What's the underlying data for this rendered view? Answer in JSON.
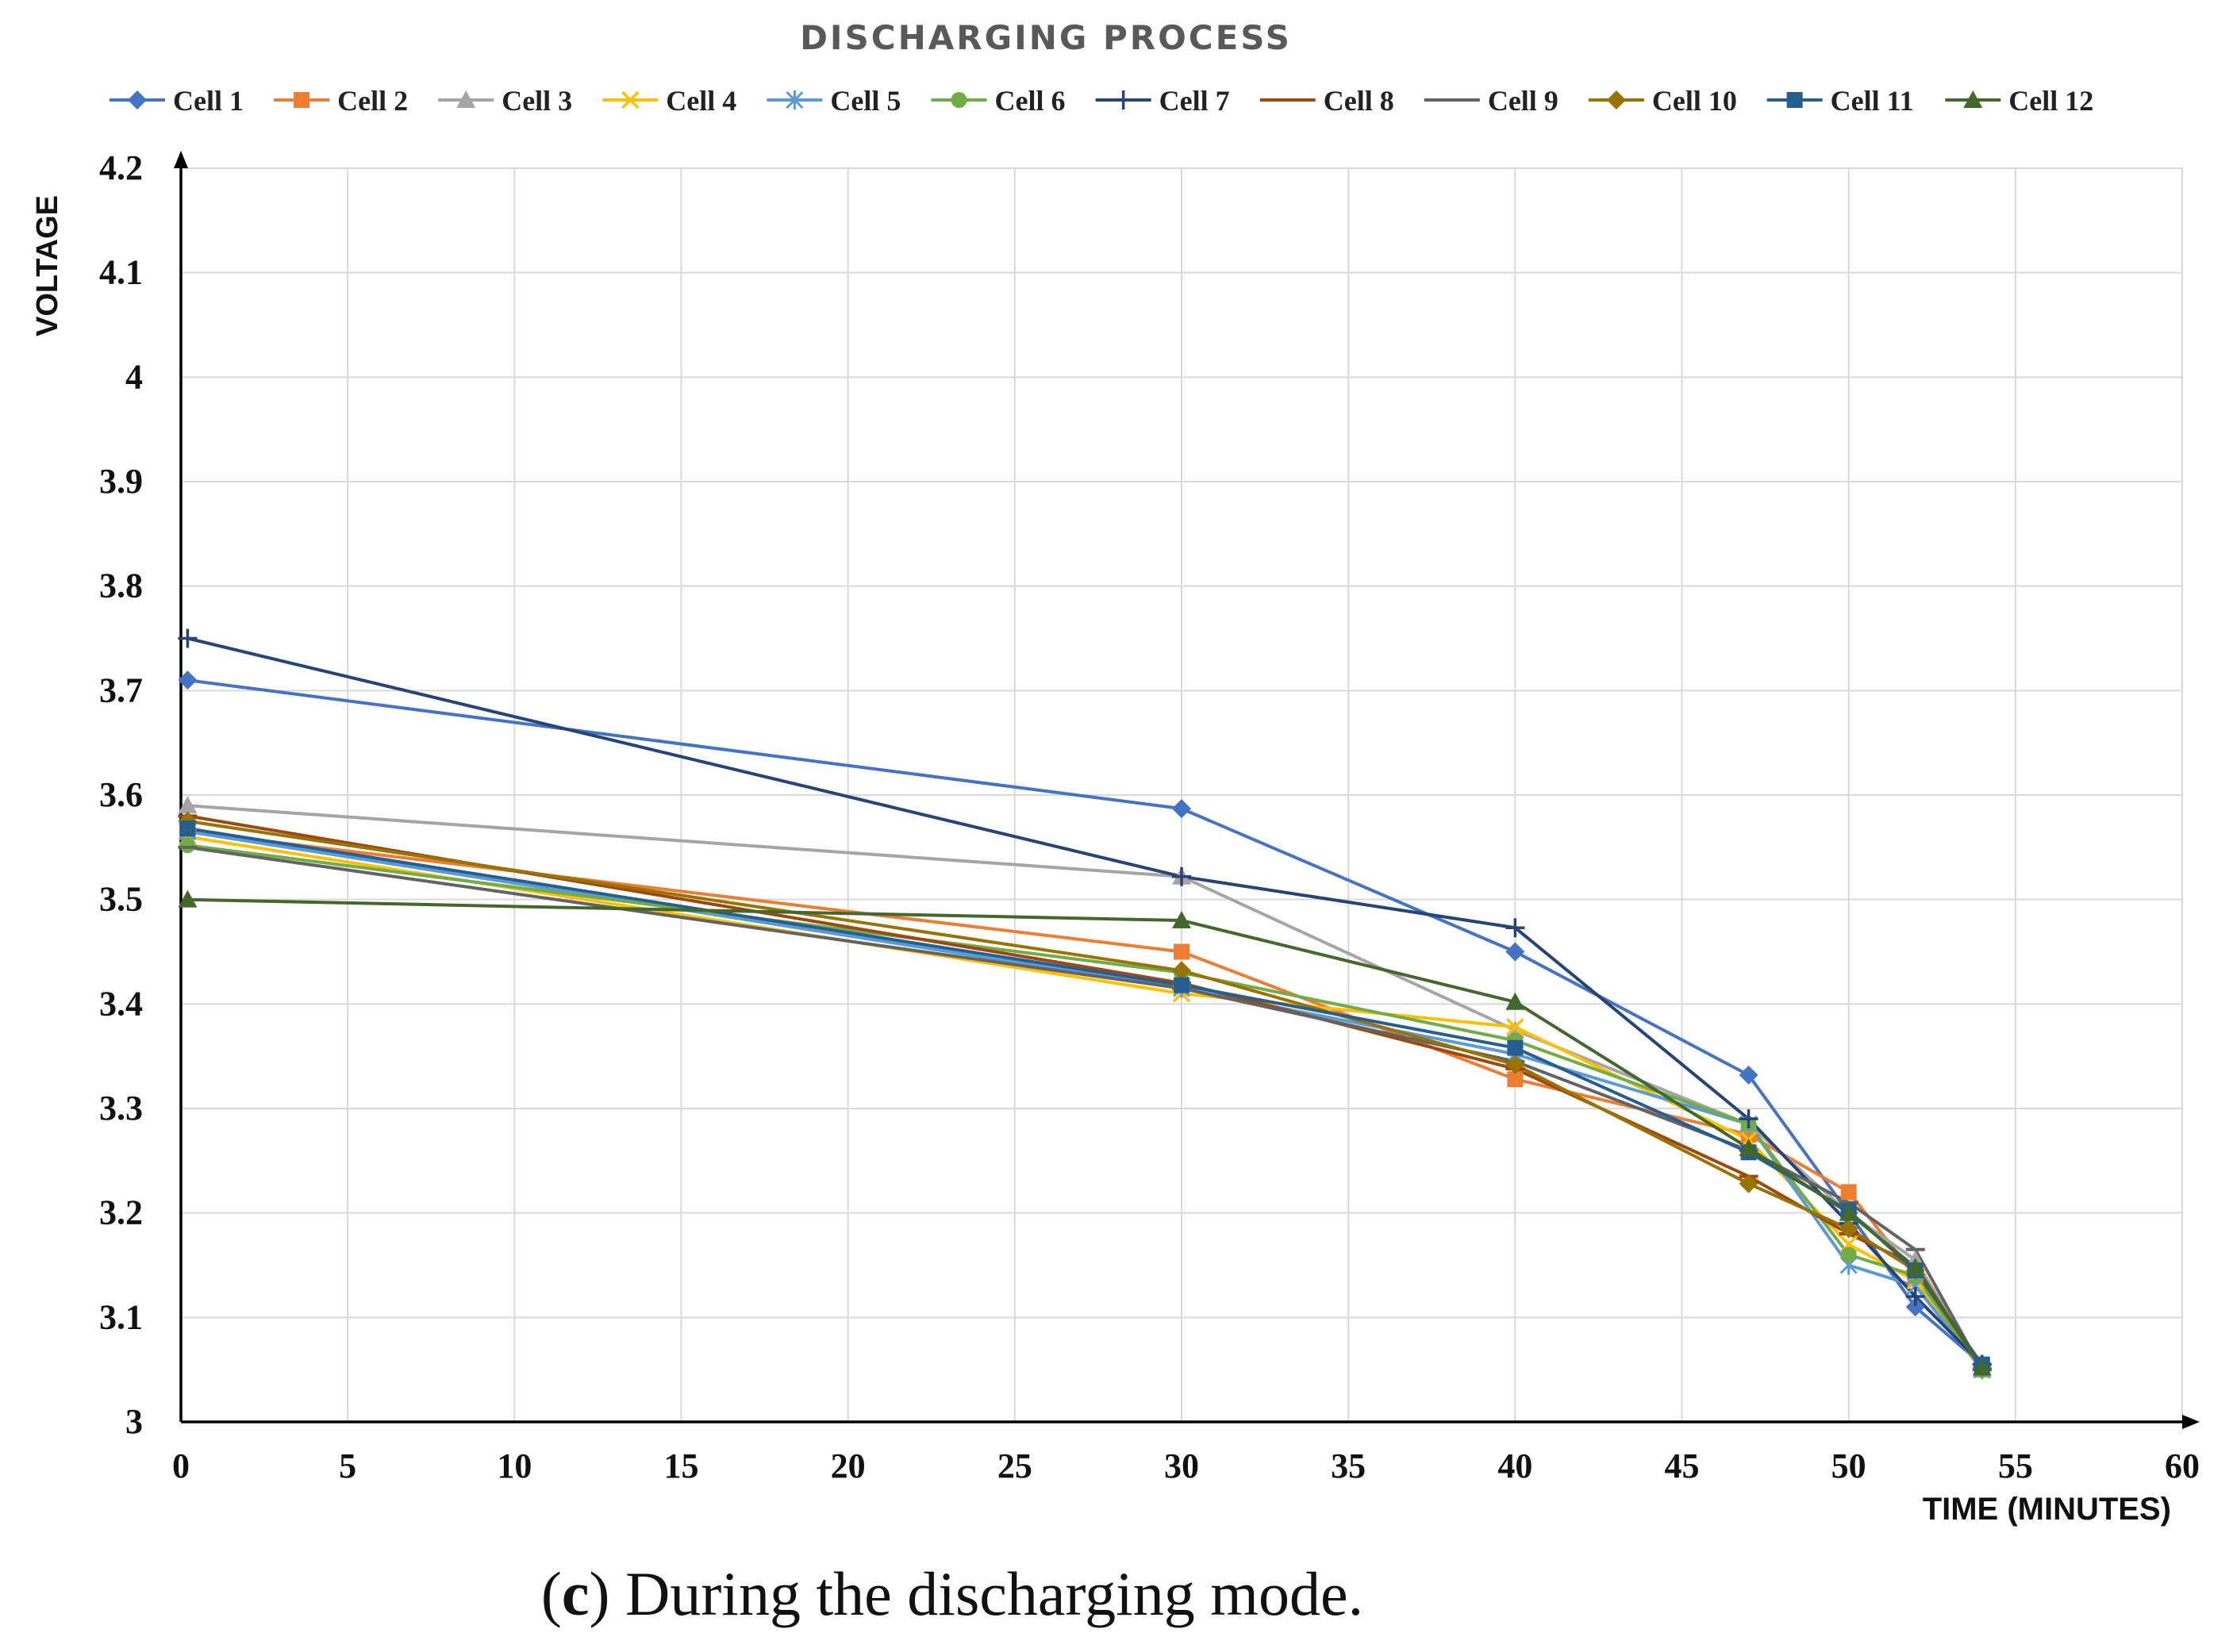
{
  "chart_data": {
    "type": "line",
    "title": "DISCHARGING PROCESS",
    "xlabel": "TIME (MINUTES)",
    "ylabel": "VOLTAGE",
    "xlim": [
      0,
      60
    ],
    "ylim": [
      3,
      4.2
    ],
    "xticks": [
      "0",
      "5",
      "10",
      "15",
      "20",
      "25",
      "30",
      "35",
      "40",
      "45",
      "50",
      "55",
      "60"
    ],
    "yticks": [
      "3",
      "3.1",
      "3.2",
      "3.3",
      "3.4",
      "3.5",
      "3.6",
      "3.7",
      "3.8",
      "3.9",
      "4",
      "4.1",
      "4.2"
    ],
    "grid": true,
    "legend_position": "top",
    "series": [
      {
        "name": "Cell 1",
        "color": "#4472C4",
        "marker": "diamond",
        "x": [
          0.2,
          30,
          40,
          47,
          50,
          52,
          54
        ],
        "y": [
          3.71,
          3.587,
          3.45,
          3.332,
          3.2,
          3.11,
          3.055
        ]
      },
      {
        "name": "Cell 2",
        "color": "#ED7D31",
        "marker": "square",
        "x": [
          0.2,
          30,
          40,
          47,
          50,
          52,
          54
        ],
        "y": [
          3.565,
          3.45,
          3.328,
          3.275,
          3.22,
          3.14,
          3.05
        ]
      },
      {
        "name": "Cell 3",
        "color": "#A5A5A5",
        "marker": "triangle",
        "x": [
          0.2,
          30,
          40,
          47,
          50,
          52,
          54
        ],
        "y": [
          3.59,
          3.522,
          3.375,
          3.285,
          3.2,
          3.155,
          3.05
        ]
      },
      {
        "name": "Cell 4",
        "color": "#FFC000",
        "marker": "x",
        "x": [
          0.2,
          30,
          40,
          47,
          50,
          52,
          54
        ],
        "y": [
          3.56,
          3.41,
          3.378,
          3.27,
          3.17,
          3.135,
          3.05
        ]
      },
      {
        "name": "Cell 5",
        "color": "#5B9BD5",
        "marker": "star",
        "x": [
          0.2,
          30,
          40,
          47,
          50,
          52,
          54
        ],
        "y": [
          3.565,
          3.415,
          3.352,
          3.285,
          3.15,
          3.13,
          3.05
        ]
      },
      {
        "name": "Cell 6",
        "color": "#70AD47",
        "marker": "circle",
        "x": [
          0.2,
          30,
          40,
          47,
          50,
          52,
          54
        ],
        "y": [
          3.552,
          3.43,
          3.365,
          3.285,
          3.16,
          3.14,
          3.05
        ]
      },
      {
        "name": "Cell 7",
        "color": "#264478",
        "marker": "plus",
        "x": [
          0.2,
          30,
          40,
          47,
          50,
          52,
          54
        ],
        "y": [
          3.75,
          3.522,
          3.473,
          3.29,
          3.19,
          3.12,
          3.055
        ]
      },
      {
        "name": "Cell 8",
        "color": "#9E480E",
        "marker": "dash",
        "x": [
          0.2,
          30,
          40,
          47,
          50,
          52,
          54
        ],
        "y": [
          3.58,
          3.42,
          3.338,
          3.235,
          3.18,
          3.15,
          3.05
        ]
      },
      {
        "name": "Cell 9",
        "color": "#636363",
        "marker": "dash",
        "x": [
          0.2,
          30,
          40,
          47,
          50,
          52,
          54
        ],
        "y": [
          3.55,
          3.415,
          3.345,
          3.26,
          3.21,
          3.165,
          3.05
        ]
      },
      {
        "name": "Cell 10",
        "color": "#997300",
        "marker": "diamond",
        "x": [
          0.2,
          30,
          40,
          47,
          50,
          52,
          54
        ],
        "y": [
          3.575,
          3.432,
          3.342,
          3.228,
          3.185,
          3.145,
          3.052
        ]
      },
      {
        "name": "Cell 11",
        "color": "#255E91",
        "marker": "square",
        "x": [
          0.2,
          30,
          40,
          47,
          50,
          52,
          54
        ],
        "y": [
          3.568,
          3.418,
          3.358,
          3.258,
          3.202,
          3.145,
          3.055
        ]
      },
      {
        "name": "Cell 12",
        "color": "#43682B",
        "marker": "triangle",
        "x": [
          0.2,
          30,
          40,
          47,
          50,
          52,
          54
        ],
        "y": [
          3.5,
          3.48,
          3.402,
          3.262,
          3.2,
          3.148,
          3.052
        ]
      }
    ]
  },
  "caption": {
    "open": "(",
    "letter": "c",
    "rest": ") During the discharging mode."
  }
}
